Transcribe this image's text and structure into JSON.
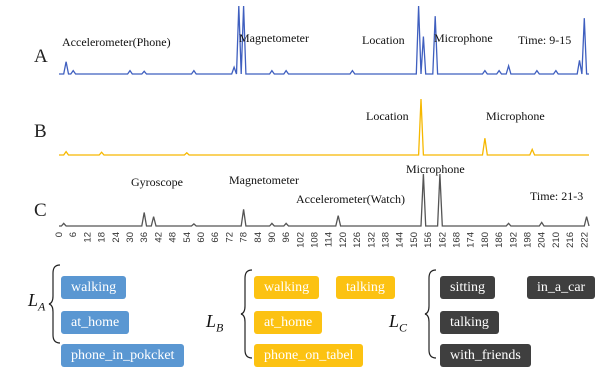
{
  "chart_data": {
    "type": "line",
    "panels": [
      {
        "letter": "A",
        "color": "#3f5fbf",
        "time": "Time: 9-15",
        "annotations": [
          "Accelerometer(Phone)",
          "Magnetometer",
          "Location",
          "Microphone"
        ],
        "peaks": [
          [
            3,
            0.18
          ],
          [
            6,
            0.05
          ],
          [
            30,
            0.05
          ],
          [
            36,
            0.04
          ],
          [
            57,
            0.05
          ],
          [
            74,
            0.1
          ],
          [
            76,
            1.0
          ],
          [
            78,
            1.0
          ],
          [
            90,
            0.05
          ],
          [
            96,
            0.05
          ],
          [
            124,
            0.05
          ],
          [
            152,
            1.0
          ],
          [
            154,
            0.55
          ],
          [
            159,
            0.85
          ],
          [
            180,
            0.05
          ],
          [
            186,
            0.05
          ],
          [
            190,
            0.12
          ],
          [
            202,
            0.05
          ],
          [
            210,
            0.05
          ],
          [
            220,
            0.2
          ],
          [
            222,
            0.82
          ]
        ]
      },
      {
        "letter": "B",
        "color": "#f6b800",
        "annotations": [
          "Location",
          "Microphone"
        ],
        "peaks": [
          [
            3,
            0.06
          ],
          [
            18,
            0.05
          ],
          [
            54,
            0.04
          ],
          [
            153,
            1.0
          ],
          [
            180,
            0.3
          ],
          [
            200,
            0.1
          ]
        ]
      },
      {
        "letter": "C",
        "color": "#555555",
        "time": "Time: 21-3",
        "annotations": [
          "Gyroscope",
          "Magnetometer",
          "Accelerometer(Watch)",
          "Microphone"
        ],
        "peaks": [
          [
            2,
            0.05
          ],
          [
            36,
            0.26
          ],
          [
            40,
            0.18
          ],
          [
            57,
            0.04
          ],
          [
            78,
            0.32
          ],
          [
            90,
            0.05
          ],
          [
            96,
            0.05
          ],
          [
            118,
            0.2
          ],
          [
            154,
            1.0
          ],
          [
            161,
            1.0
          ],
          [
            190,
            0.05
          ],
          [
            204,
            0.07
          ],
          [
            223,
            0.18
          ]
        ]
      }
    ],
    "x_ticks": [
      "0",
      "6",
      "12",
      "18",
      "24",
      "30",
      "36",
      "42",
      "48",
      "54",
      "60",
      "66",
      "72",
      "78",
      "84",
      "90",
      "96",
      "102",
      "108",
      "114",
      "120",
      "126",
      "132",
      "138",
      "144",
      "150",
      "156",
      "162",
      "168",
      "174",
      "180",
      "186",
      "192",
      "198",
      "204",
      "210",
      "216",
      "222"
    ],
    "xlim": [
      0,
      224
    ]
  },
  "groups": [
    {
      "label": "L",
      "sub": "A",
      "color": "#5a97d2",
      "items": [
        "walking",
        "at_home",
        "phone_in_pokcket"
      ]
    },
    {
      "label": "L",
      "sub": "B",
      "color": "#fcc212",
      "items": [
        "walking",
        "talking",
        "at_home",
        "phone_on_tabel"
      ]
    },
    {
      "label": "L",
      "sub": "C",
      "color": "#3f3f3f",
      "items": [
        "sitting",
        "in_a_car",
        "talking",
        "with_friends"
      ]
    }
  ]
}
